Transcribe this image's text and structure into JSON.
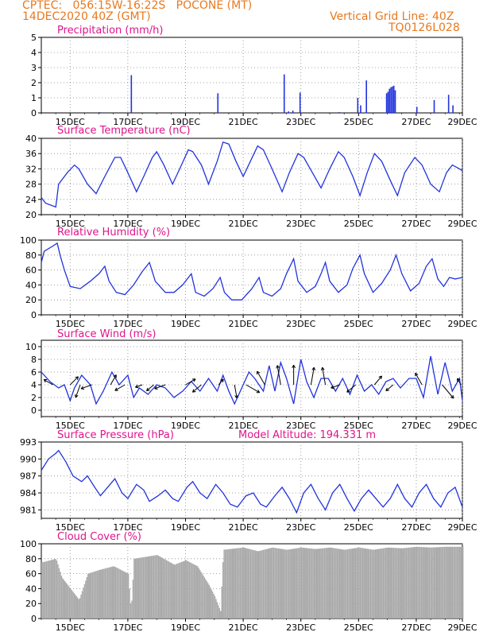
{
  "header": {
    "line1": "CPTEC:   056:15W-16:22S   POCONE (MT)",
    "line2": "14DEC2020 40Z (GMT)",
    "right1": "Vertical Grid Line: 40Z",
    "right2": "TQ0126L028"
  },
  "colors": {
    "header": "#e8791f",
    "title": "#e0148c",
    "series": "#2233dd",
    "cloud": "#a9a9a9",
    "arrow": "#000000",
    "grid": "#888888"
  },
  "chart_data": [
    {
      "id": "precip",
      "type": "bar",
      "title": "Precipitation (mm/h)",
      "x_ticks": [
        "15DEC",
        "17DEC",
        "19DEC",
        "21DEC",
        "23DEC",
        "25DEC",
        "27DEC",
        "29DEC"
      ],
      "ylim": [
        0,
        5
      ],
      "y_ticks": [
        "0",
        "1",
        "2",
        "3",
        "4",
        "5"
      ],
      "grid": true,
      "bars": [
        {
          "t": 2.0,
          "v": 0.05
        },
        {
          "t": 3.1,
          "v": 2.5
        },
        {
          "t": 6.1,
          "v": 1.3
        },
        {
          "t": 8.4,
          "v": 2.55
        },
        {
          "t": 8.55,
          "v": 0.1
        },
        {
          "t": 8.7,
          "v": 0.15
        },
        {
          "t": 8.95,
          "v": 1.35
        },
        {
          "t": 10.3,
          "v": 0.05
        },
        {
          "t": 10.95,
          "v": 1.0
        },
        {
          "t": 11.05,
          "v": 0.5
        },
        {
          "t": 11.25,
          "v": 2.15
        },
        {
          "t": 11.95,
          "v": 1.3
        },
        {
          "t": 12.0,
          "v": 1.4
        },
        {
          "t": 12.05,
          "v": 1.6
        },
        {
          "t": 12.1,
          "v": 1.7
        },
        {
          "t": 12.15,
          "v": 1.75
        },
        {
          "t": 12.2,
          "v": 1.8
        },
        {
          "t": 12.25,
          "v": 1.5
        },
        {
          "t": 13.0,
          "v": 0.4
        },
        {
          "t": 13.6,
          "v": 0.85
        },
        {
          "t": 14.1,
          "v": 1.2
        },
        {
          "t": 14.25,
          "v": 0.5
        }
      ]
    },
    {
      "id": "temp",
      "type": "line",
      "title": "Surface Temperature (nC)",
      "x_ticks": [
        "15DEC",
        "17DEC",
        "19DEC",
        "21DEC",
        "23DEC",
        "25DEC",
        "27DEC",
        "29DEC"
      ],
      "ylim": [
        20,
        40
      ],
      "y_ticks": [
        "20",
        "24",
        "28",
        "32",
        "36",
        "40"
      ],
      "grid": true,
      "points": [
        [
          0,
          24.5
        ],
        [
          0.15,
          23
        ],
        [
          0.5,
          22
        ],
        [
          0.6,
          28
        ],
        [
          0.9,
          31
        ],
        [
          1.15,
          33
        ],
        [
          1.3,
          32
        ],
        [
          1.6,
          28
        ],
        [
          1.9,
          25.5
        ],
        [
          2.2,
          30
        ],
        [
          2.55,
          35
        ],
        [
          2.75,
          35
        ],
        [
          3.0,
          31
        ],
        [
          3.3,
          26
        ],
        [
          3.55,
          30
        ],
        [
          3.85,
          35
        ],
        [
          4.0,
          36.5
        ],
        [
          4.25,
          33
        ],
        [
          4.55,
          28
        ],
        [
          4.8,
          32
        ],
        [
          5.1,
          37
        ],
        [
          5.25,
          36.5
        ],
        [
          5.55,
          33
        ],
        [
          5.8,
          28
        ],
        [
          6.1,
          34
        ],
        [
          6.3,
          39
        ],
        [
          6.5,
          38.5
        ],
        [
          6.75,
          34
        ],
        [
          7.0,
          30
        ],
        [
          7.25,
          34
        ],
        [
          7.5,
          38
        ],
        [
          7.7,
          37
        ],
        [
          8.0,
          32
        ],
        [
          8.35,
          26
        ],
        [
          8.6,
          31
        ],
        [
          8.9,
          36
        ],
        [
          9.1,
          35
        ],
        [
          9.4,
          31
        ],
        [
          9.7,
          27
        ],
        [
          10.0,
          32
        ],
        [
          10.3,
          36.5
        ],
        [
          10.5,
          35
        ],
        [
          10.8,
          30
        ],
        [
          11.05,
          25
        ],
        [
          11.3,
          31
        ],
        [
          11.55,
          36
        ],
        [
          11.8,
          34
        ],
        [
          12.1,
          29
        ],
        [
          12.35,
          25
        ],
        [
          12.6,
          31
        ],
        [
          12.95,
          35
        ],
        [
          13.2,
          33
        ],
        [
          13.5,
          28
        ],
        [
          13.8,
          26
        ],
        [
          14.05,
          31
        ],
        [
          14.25,
          33
        ],
        [
          14.5,
          32
        ],
        [
          14.6,
          31.5
        ]
      ]
    },
    {
      "id": "rh",
      "type": "line",
      "title": "Relative Humidity (%)",
      "x_ticks": [
        "15DEC",
        "17DEC",
        "19DEC",
        "21DEC",
        "23DEC",
        "25DEC",
        "27DEC",
        "29DEC"
      ],
      "ylim": [
        0,
        100
      ],
      "y_ticks": [
        "0",
        "20",
        "40",
        "60",
        "80",
        "100"
      ],
      "grid": true,
      "points": [
        [
          0,
          70
        ],
        [
          0.1,
          85
        ],
        [
          0.4,
          92
        ],
        [
          0.55,
          96
        ],
        [
          0.65,
          80
        ],
        [
          0.8,
          60
        ],
        [
          1.0,
          38
        ],
        [
          1.35,
          35
        ],
        [
          1.7,
          45
        ],
        [
          2.0,
          55
        ],
        [
          2.2,
          65
        ],
        [
          2.35,
          45
        ],
        [
          2.6,
          30
        ],
        [
          2.9,
          27
        ],
        [
          3.2,
          40
        ],
        [
          3.5,
          58
        ],
        [
          3.75,
          70
        ],
        [
          3.95,
          45
        ],
        [
          4.3,
          30
        ],
        [
          4.6,
          30
        ],
        [
          4.9,
          40
        ],
        [
          5.2,
          55
        ],
        [
          5.35,
          30
        ],
        [
          5.65,
          25
        ],
        [
          5.95,
          35
        ],
        [
          6.2,
          50
        ],
        [
          6.35,
          30
        ],
        [
          6.6,
          20
        ],
        [
          6.95,
          20
        ],
        [
          7.3,
          35
        ],
        [
          7.55,
          50
        ],
        [
          7.7,
          30
        ],
        [
          8.0,
          25
        ],
        [
          8.3,
          35
        ],
        [
          8.5,
          55
        ],
        [
          8.75,
          75
        ],
        [
          8.9,
          45
        ],
        [
          9.2,
          30
        ],
        [
          9.5,
          38
        ],
        [
          9.7,
          55
        ],
        [
          9.85,
          70
        ],
        [
          10.0,
          45
        ],
        [
          10.3,
          30
        ],
        [
          10.6,
          40
        ],
        [
          10.8,
          62
        ],
        [
          11.05,
          80
        ],
        [
          11.2,
          55
        ],
        [
          11.5,
          30
        ],
        [
          11.8,
          42
        ],
        [
          12.1,
          60
        ],
        [
          12.3,
          80
        ],
        [
          12.5,
          55
        ],
        [
          12.8,
          32
        ],
        [
          13.1,
          42
        ],
        [
          13.35,
          65
        ],
        [
          13.55,
          75
        ],
        [
          13.75,
          48
        ],
        [
          13.95,
          38
        ],
        [
          14.15,
          50
        ],
        [
          14.35,
          48
        ],
        [
          14.6,
          50
        ]
      ]
    },
    {
      "id": "wind",
      "type": "line",
      "title": "Surface Wind (m/s)",
      "x_ticks": [
        "15DEC",
        "17DEC",
        "19DEC",
        "21DEC",
        "23DEC",
        "25DEC",
        "27DEC",
        "29DEC"
      ],
      "ylim": [
        -1,
        11
      ],
      "y_ticks": [
        "0",
        "2",
        "4",
        "6",
        "8",
        "10"
      ],
      "grid": true,
      "points": [
        [
          0,
          6
        ],
        [
          0.3,
          4.5
        ],
        [
          0.6,
          3.5
        ],
        [
          0.8,
          4
        ],
        [
          1.0,
          1.5
        ],
        [
          1.15,
          3.5
        ],
        [
          1.4,
          5.5
        ],
        [
          1.7,
          4
        ],
        [
          1.9,
          1
        ],
        [
          2.15,
          3
        ],
        [
          2.45,
          6
        ],
        [
          2.7,
          4
        ],
        [
          3.0,
          5.5
        ],
        [
          3.2,
          2
        ],
        [
          3.4,
          3.5
        ],
        [
          3.7,
          2.5
        ],
        [
          4.0,
          4
        ],
        [
          4.3,
          3.5
        ],
        [
          4.6,
          2
        ],
        [
          4.9,
          3
        ],
        [
          5.2,
          4.5
        ],
        [
          5.5,
          3
        ],
        [
          5.8,
          5
        ],
        [
          6.1,
          3
        ],
        [
          6.3,
          5.5
        ],
        [
          6.5,
          3
        ],
        [
          6.7,
          1
        ],
        [
          6.95,
          3.5
        ],
        [
          7.2,
          6
        ],
        [
          7.4,
          5
        ],
        [
          7.7,
          3
        ],
        [
          7.9,
          7
        ],
        [
          8.1,
          3
        ],
        [
          8.3,
          7.5
        ],
        [
          8.5,
          5
        ],
        [
          8.75,
          1
        ],
        [
          9.0,
          8
        ],
        [
          9.2,
          4.5
        ],
        [
          9.45,
          2
        ],
        [
          9.7,
          5
        ],
        [
          9.95,
          5
        ],
        [
          10.2,
          3
        ],
        [
          10.45,
          5
        ],
        [
          10.7,
          2.5
        ],
        [
          10.95,
          5.5
        ],
        [
          11.2,
          3
        ],
        [
          11.45,
          4
        ],
        [
          11.7,
          2.5
        ],
        [
          11.95,
          4.5
        ],
        [
          12.2,
          5
        ],
        [
          12.45,
          3.5
        ],
        [
          12.75,
          5
        ],
        [
          13.0,
          5
        ],
        [
          13.25,
          2
        ],
        [
          13.5,
          8.5
        ],
        [
          13.75,
          2.5
        ],
        [
          14.0,
          7.5
        ],
        [
          14.25,
          3
        ],
        [
          14.5,
          5
        ],
        [
          14.6,
          1.5
        ]
      ]
    },
    {
      "id": "pressure",
      "type": "line",
      "title": "Surface Pressure (hPa)",
      "annotation": "Model Altitude: 194.331 m",
      "x_ticks": [
        "15DEC",
        "17DEC",
        "19DEC",
        "21DEC",
        "23DEC",
        "25DEC",
        "27DEC",
        "29DEC"
      ],
      "ylim": [
        979.5,
        993
      ],
      "y_ticks": [
        "981",
        "984",
        "987",
        "990",
        "993"
      ],
      "grid": true,
      "points": [
        [
          0,
          988
        ],
        [
          0.25,
          990
        ],
        [
          0.5,
          991
        ],
        [
          0.6,
          991.5
        ],
        [
          0.85,
          989.5
        ],
        [
          1.1,
          987
        ],
        [
          1.4,
          986
        ],
        [
          1.6,
          987
        ],
        [
          1.85,
          985
        ],
        [
          2.05,
          983.5
        ],
        [
          2.3,
          985
        ],
        [
          2.55,
          986.5
        ],
        [
          2.8,
          984
        ],
        [
          3.0,
          983
        ],
        [
          3.3,
          985.5
        ],
        [
          3.55,
          984.5
        ],
        [
          3.75,
          982.5
        ],
        [
          4.05,
          983.5
        ],
        [
          4.3,
          984.5
        ],
        [
          4.55,
          983
        ],
        [
          4.75,
          982.5
        ],
        [
          5.05,
          985
        ],
        [
          5.25,
          986
        ],
        [
          5.5,
          984
        ],
        [
          5.75,
          983
        ],
        [
          6.05,
          985.5
        ],
        [
          6.3,
          984
        ],
        [
          6.55,
          982
        ],
        [
          6.8,
          981.5
        ],
        [
          7.1,
          983.5
        ],
        [
          7.35,
          984
        ],
        [
          7.6,
          982
        ],
        [
          7.8,
          981.5
        ],
        [
          8.1,
          983.5
        ],
        [
          8.35,
          985
        ],
        [
          8.6,
          983
        ],
        [
          8.85,
          980.5
        ],
        [
          9.1,
          984
        ],
        [
          9.35,
          985.5
        ],
        [
          9.6,
          983
        ],
        [
          9.85,
          981
        ],
        [
          10.1,
          984
        ],
        [
          10.35,
          985.5
        ],
        [
          10.6,
          983
        ],
        [
          10.85,
          980.8
        ],
        [
          11.1,
          983
        ],
        [
          11.35,
          984.5
        ],
        [
          11.6,
          983
        ],
        [
          11.85,
          981.5
        ],
        [
          12.1,
          983
        ],
        [
          12.35,
          985.5
        ],
        [
          12.6,
          983
        ],
        [
          12.85,
          981.5
        ],
        [
          13.1,
          984
        ],
        [
          13.35,
          985.5
        ],
        [
          13.6,
          983
        ],
        [
          13.85,
          981.5
        ],
        [
          14.1,
          984
        ],
        [
          14.35,
          985
        ],
        [
          14.6,
          981.5
        ]
      ]
    },
    {
      "id": "cloud",
      "type": "area",
      "title": "Cloud Cover (%)",
      "x_ticks": [
        "15DEC",
        "17DEC",
        "19DEC",
        "21DEC",
        "23DEC",
        "25DEC",
        "27DEC",
        "29DEC"
      ],
      "ylim": [
        0,
        100
      ],
      "y_ticks": [
        "0",
        "20",
        "40",
        "60",
        "80",
        "100"
      ],
      "grid": true,
      "points": [
        [
          0,
          75
        ],
        [
          0.5,
          80
        ],
        [
          0.7,
          55
        ],
        [
          1.0,
          40
        ],
        [
          1.3,
          25
        ],
        [
          1.6,
          60
        ],
        [
          2.0,
          65
        ],
        [
          2.5,
          70
        ],
        [
          3.0,
          60
        ],
        [
          3.1,
          10
        ],
        [
          3.2,
          80
        ],
        [
          4.0,
          85
        ],
        [
          4.6,
          72
        ],
        [
          5.0,
          78
        ],
        [
          5.4,
          70
        ],
        [
          5.8,
          45
        ],
        [
          6.0,
          30
        ],
        [
          6.2,
          10
        ],
        [
          6.3,
          92
        ],
        [
          7.0,
          95
        ],
        [
          7.5,
          90
        ],
        [
          8.0,
          95
        ],
        [
          8.5,
          92
        ],
        [
          9.0,
          95
        ],
        [
          9.5,
          93
        ],
        [
          10.0,
          95
        ],
        [
          10.5,
          92
        ],
        [
          11.0,
          95
        ],
        [
          11.5,
          92
        ],
        [
          12.0,
          95
        ],
        [
          12.5,
          94
        ],
        [
          13.0,
          96
        ],
        [
          13.5,
          95
        ],
        [
          14.0,
          96
        ],
        [
          14.6,
          96
        ]
      ]
    }
  ],
  "wind_vectors": [
    {
      "t": 0.4,
      "dir": 300,
      "speed": 3.5
    },
    {
      "t": 1.0,
      "dir": 45,
      "speed": 4
    },
    {
      "t": 1.35,
      "dir": 200,
      "speed": 5
    },
    {
      "t": 1.75,
      "dir": 250,
      "speed": 4
    },
    {
      "t": 2.4,
      "dir": 30,
      "speed": 4
    },
    {
      "t": 2.9,
      "dir": 240,
      "speed": 4
    },
    {
      "t": 3.5,
      "dir": 250,
      "speed": 2
    },
    {
      "t": 3.9,
      "dir": 230,
      "speed": 3
    },
    {
      "t": 4.3,
      "dir": 250,
      "speed": 4
    },
    {
      "t": 5.0,
      "dir": 60,
      "speed": 4
    },
    {
      "t": 5.55,
      "dir": 230,
      "speed": 4
    },
    {
      "t": 6.15,
      "dir": 40,
      "speed": 2
    },
    {
      "t": 6.7,
      "dir": 170,
      "speed": 5
    },
    {
      "t": 7.1,
      "dir": 120,
      "speed": 6
    },
    {
      "t": 7.75,
      "dir": 330,
      "speed": 6
    },
    {
      "t": 8.3,
      "dir": 350,
      "speed": 8
    },
    {
      "t": 8.75,
      "dir": 0,
      "speed": 8
    },
    {
      "t": 9.35,
      "dir": 10,
      "speed": 7
    },
    {
      "t": 9.85,
      "dir": 350,
      "speed": 7
    },
    {
      "t": 10.35,
      "dir": 250,
      "speed": 3
    },
    {
      "t": 10.9,
      "dir": 230,
      "speed": 4
    },
    {
      "t": 11.55,
      "dir": 40,
      "speed": 4
    },
    {
      "t": 12.2,
      "dir": 230,
      "speed": 3
    },
    {
      "t": 13.2,
      "dir": 330,
      "speed": 5
    },
    {
      "t": 13.9,
      "dir": 140,
      "speed": 7
    },
    {
      "t": 14.55,
      "dir": 330,
      "speed": 2
    }
  ]
}
